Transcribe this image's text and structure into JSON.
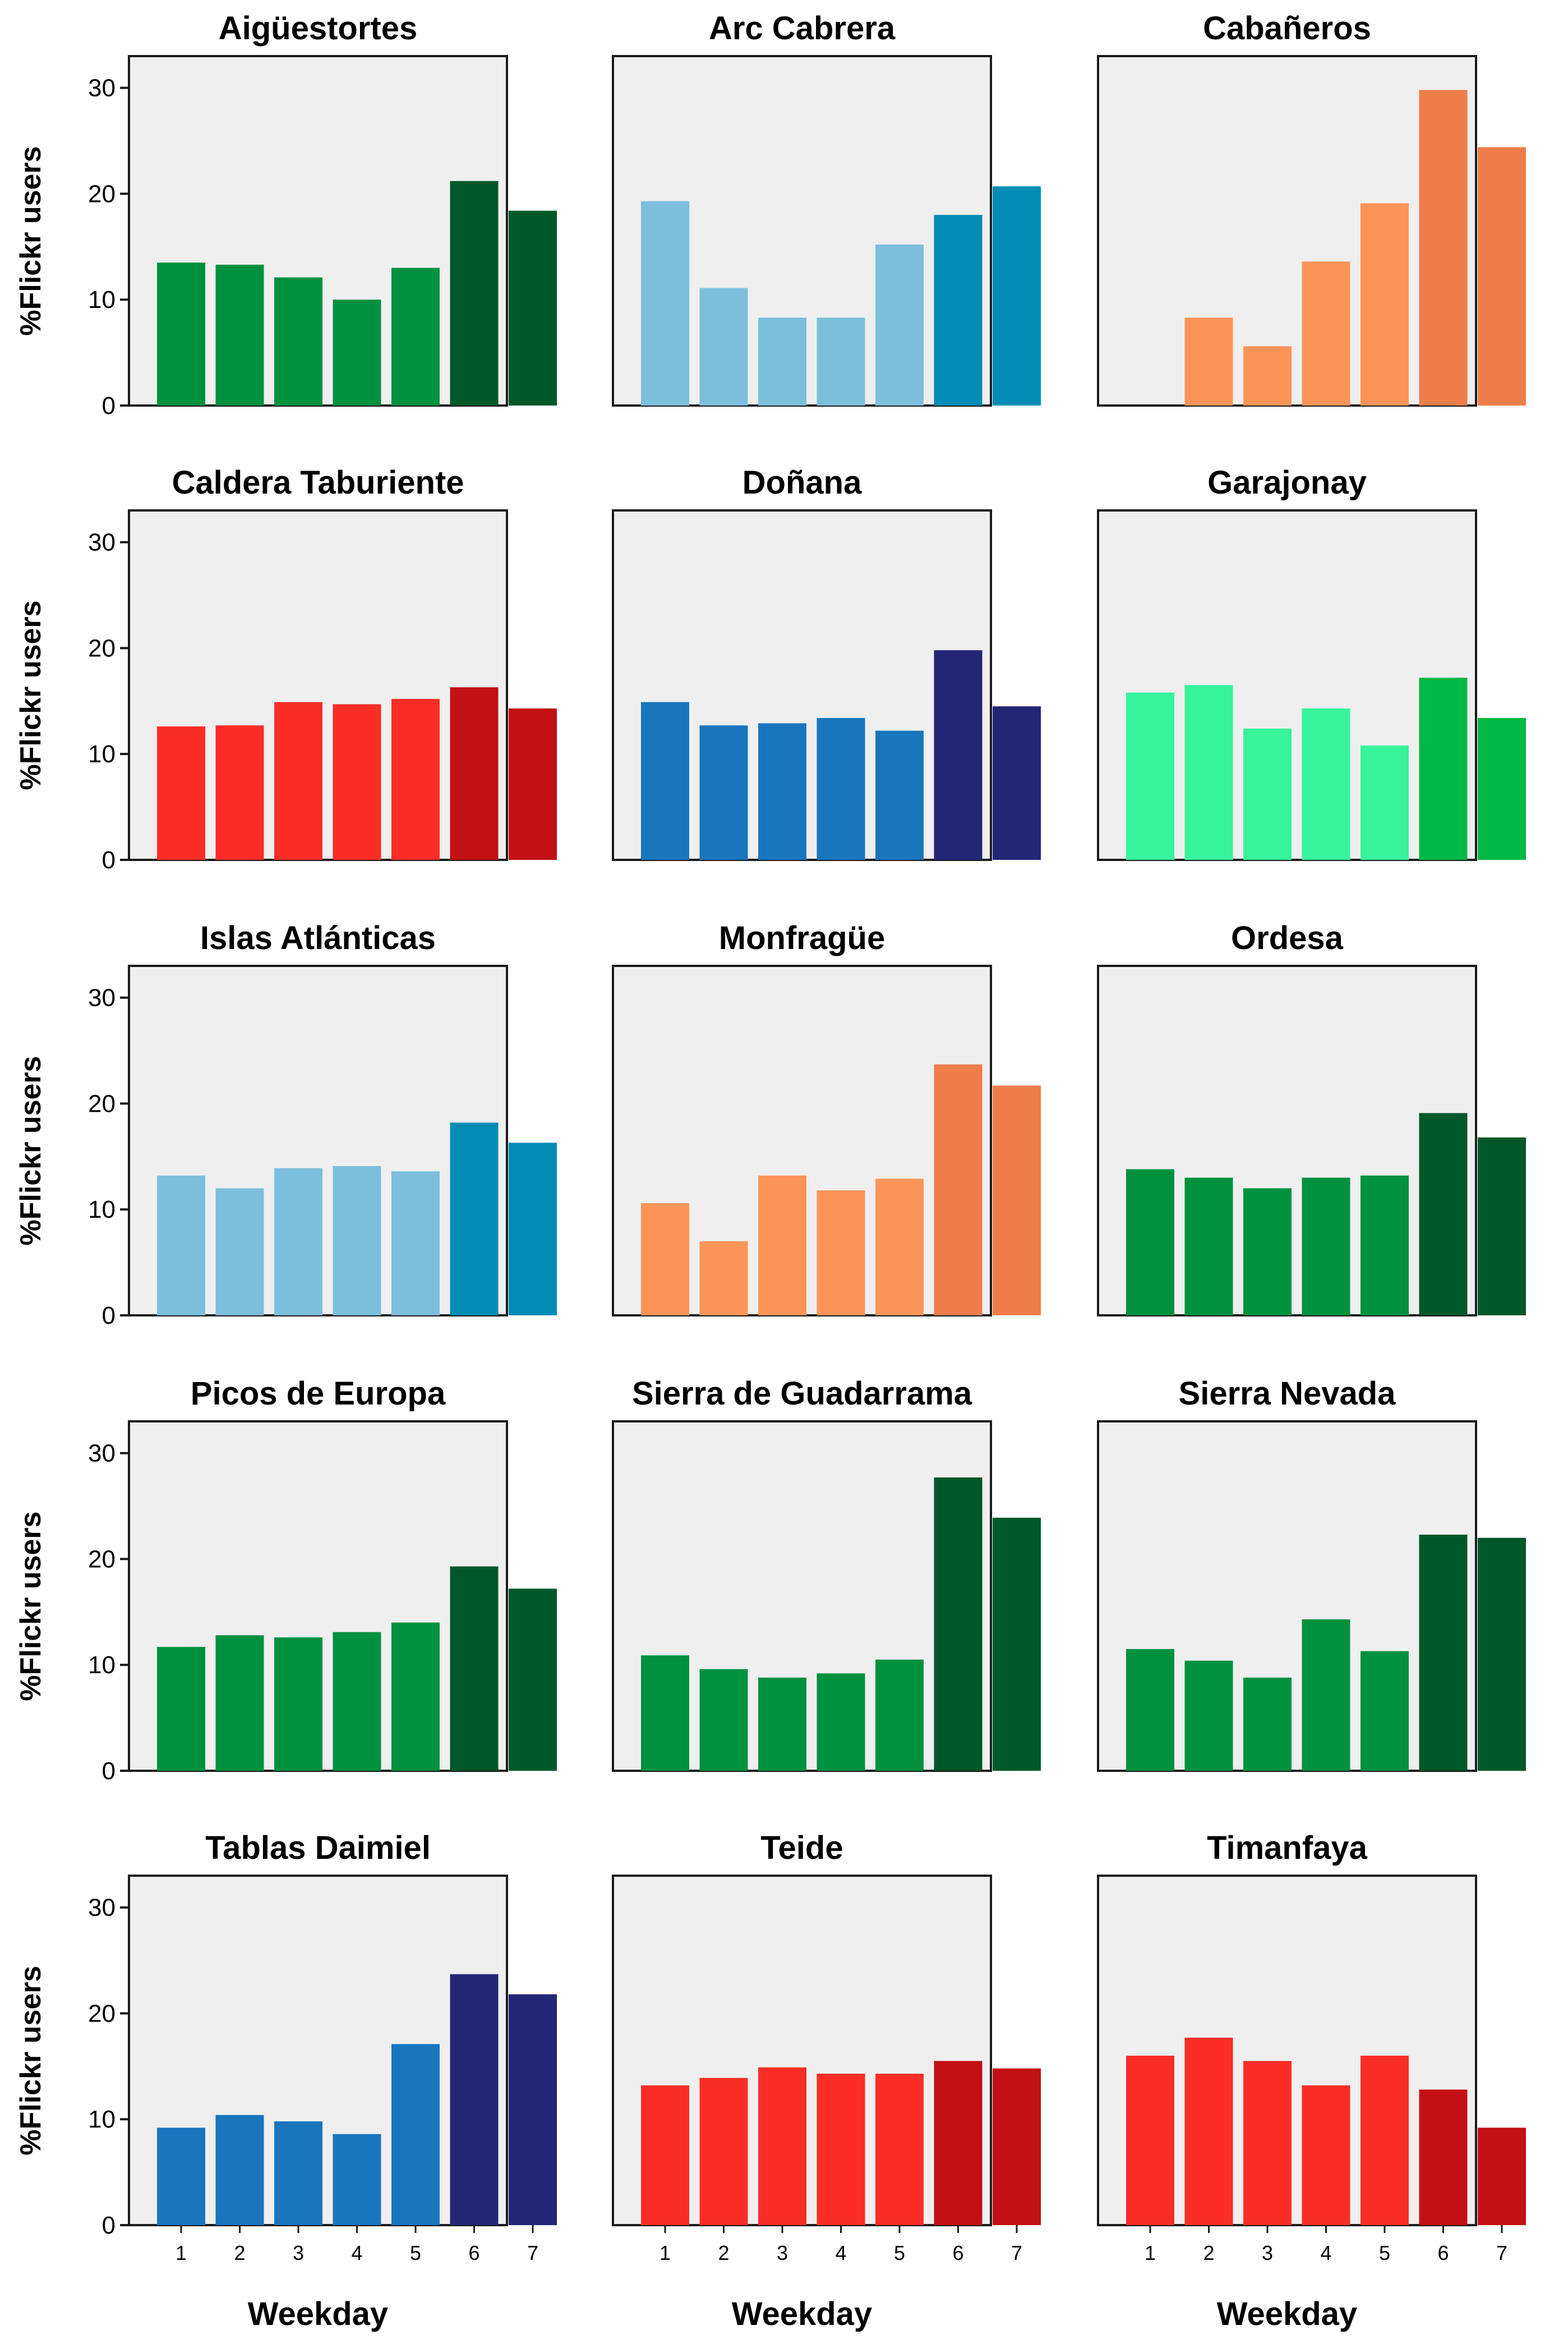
{
  "chart_data": {
    "type": "bar",
    "layout": "small-multiples 5x3",
    "shared_xlabel": "Weekday",
    "shared_ylabel": "%Flickr users",
    "categories": [
      "1",
      "2",
      "3",
      "4",
      "5",
      "6",
      "7"
    ],
    "ylim": [
      0,
      33
    ],
    "yticks": [
      "0",
      "10",
      "20",
      "30"
    ],
    "grid": false,
    "panels": [
      {
        "title": "Aigüestortes",
        "values": [
          13.5,
          13.3,
          12.1,
          10.0,
          13.0,
          21.2,
          18.4
        ],
        "colors": [
          "#00913f",
          "#00913f",
          "#00913f",
          "#00913f",
          "#00913f",
          "#00582a",
          "#00582a"
        ]
      },
      {
        "title": "Arc Cabrera",
        "values": [
          19.3,
          11.1,
          8.3,
          8.3,
          15.2,
          18.0,
          20.7
        ],
        "colors": [
          "#7bbfdc",
          "#7bbfdc",
          "#7bbfdc",
          "#7bbfdc",
          "#7bbfdc",
          "#008cb4",
          "#008cb4"
        ]
      },
      {
        "title": "Cabañeros",
        "values": [
          0,
          8.3,
          5.6,
          13.6,
          19.1,
          29.8,
          24.4
        ],
        "colors": [
          "#fd9457",
          "#fd9457",
          "#fd9457",
          "#fd9457",
          "#fd9457",
          "#ee7d4a",
          "#ee7d4a"
        ]
      },
      {
        "title": "Caldera Taburiente",
        "values": [
          12.6,
          12.7,
          14.9,
          14.7,
          15.2,
          16.3,
          14.3
        ],
        "colors": [
          "#f92d26",
          "#f92d26",
          "#f92d26",
          "#f92d26",
          "#f92d26",
          "#c21014",
          "#c21014"
        ]
      },
      {
        "title": "Doñana",
        "values": [
          14.9,
          12.7,
          12.9,
          13.4,
          12.2,
          19.8,
          14.5
        ],
        "colors": [
          "#1976bd",
          "#1976bd",
          "#1976bd",
          "#1976bd",
          "#1976bd",
          "#232675",
          "#232675"
        ]
      },
      {
        "title": "Garajonay",
        "values": [
          15.8,
          16.5,
          12.4,
          14.3,
          10.8,
          17.2,
          13.4
        ],
        "colors": [
          "#37f39b",
          "#37f39b",
          "#37f39b",
          "#37f39b",
          "#37f39b",
          "#00b845",
          "#00b845"
        ]
      },
      {
        "title": "Islas Atlánticas",
        "values": [
          13.2,
          12.0,
          13.9,
          14.1,
          13.6,
          18.2,
          16.3
        ],
        "colors": [
          "#7bbfdc",
          "#7bbfdc",
          "#7bbfdc",
          "#7bbfdc",
          "#7bbfdc",
          "#008cb4",
          "#008cb4"
        ]
      },
      {
        "title": "Monfragüe",
        "values": [
          10.6,
          7.0,
          13.2,
          11.8,
          12.9,
          23.7,
          21.7
        ],
        "colors": [
          "#fd9457",
          "#fd9457",
          "#fd9457",
          "#fd9457",
          "#fd9457",
          "#ee7d4a",
          "#ee7d4a"
        ]
      },
      {
        "title": "Ordesa",
        "values": [
          13.8,
          13.0,
          12.0,
          13.0,
          13.2,
          19.1,
          16.8
        ],
        "colors": [
          "#00913f",
          "#00913f",
          "#00913f",
          "#00913f",
          "#00913f",
          "#00582a",
          "#00582a"
        ]
      },
      {
        "title": "Picos de Europa",
        "values": [
          11.7,
          12.8,
          12.6,
          13.1,
          14.0,
          19.3,
          17.2
        ],
        "colors": [
          "#00913f",
          "#00913f",
          "#00913f",
          "#00913f",
          "#00913f",
          "#00582a",
          "#00582a"
        ]
      },
      {
        "title": "Sierra de Guadarrama",
        "values": [
          10.9,
          9.6,
          8.8,
          9.2,
          10.5,
          27.7,
          23.9
        ],
        "colors": [
          "#00913f",
          "#00913f",
          "#00913f",
          "#00913f",
          "#00913f",
          "#00582a",
          "#00582a"
        ]
      },
      {
        "title": "Sierra Nevada",
        "values": [
          11.5,
          10.4,
          8.8,
          14.3,
          11.3,
          22.3,
          22.0
        ],
        "colors": [
          "#00913f",
          "#00913f",
          "#00913f",
          "#00913f",
          "#00913f",
          "#00582a",
          "#00582a"
        ]
      },
      {
        "title": "Tablas Daimiel",
        "values": [
          9.2,
          10.4,
          9.8,
          8.6,
          17.1,
          23.7,
          21.8
        ],
        "colors": [
          "#1976bd",
          "#1976bd",
          "#1976bd",
          "#1976bd",
          "#1976bd",
          "#232675",
          "#232675"
        ]
      },
      {
        "title": "Teide",
        "values": [
          13.2,
          13.9,
          14.9,
          14.3,
          14.3,
          15.5,
          14.8
        ],
        "colors": [
          "#f92d26",
          "#f92d26",
          "#f92d26",
          "#f92d26",
          "#f92d26",
          "#c21014",
          "#c21014"
        ]
      },
      {
        "title": "Timanfaya",
        "values": [
          16.0,
          17.7,
          15.5,
          13.2,
          16.0,
          12.8,
          9.2
        ],
        "colors": [
          "#f92d26",
          "#f92d26",
          "#f92d26",
          "#f92d26",
          "#f92d26",
          "#c21014",
          "#c21014"
        ]
      }
    ]
  }
}
